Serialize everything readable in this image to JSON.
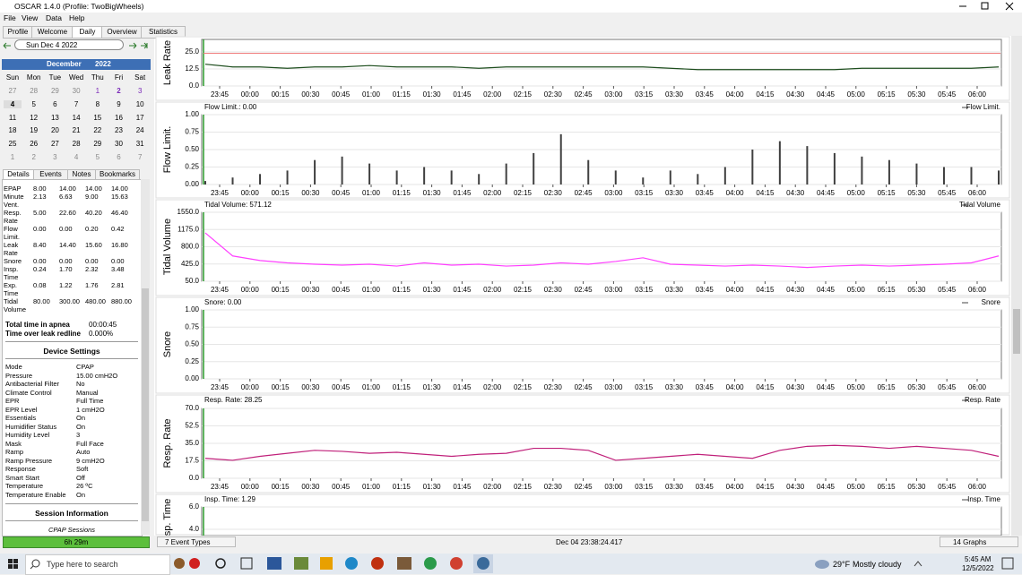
{
  "window": {
    "title": "OSCAR 1.4.0 (Profile: TwoBigWheels)"
  },
  "menu": [
    "File",
    "View",
    "Data",
    "Help"
  ],
  "tabs": [
    "Profile",
    "Welcome",
    "Daily",
    "Overview",
    "Statistics"
  ],
  "date_nav": {
    "date": "Sun Dec 4 2022"
  },
  "calendar": {
    "month": "December",
    "year": "2022",
    "weekdays": [
      "Sun",
      "Mon",
      "Tue",
      "Wed",
      "Thu",
      "Fri",
      "Sat"
    ],
    "weeks": [
      [
        27,
        28,
        29,
        30,
        1,
        2,
        3
      ],
      [
        4,
        5,
        6,
        7,
        8,
        9,
        10
      ],
      [
        11,
        12,
        13,
        14,
        15,
        16,
        17
      ],
      [
        18,
        19,
        20,
        21,
        22,
        23,
        24
      ],
      [
        25,
        26,
        27,
        28,
        29,
        30,
        31
      ],
      [
        1,
        2,
        3,
        4,
        5,
        6,
        7
      ]
    ]
  },
  "detail_tabs": [
    "Details",
    "Events",
    "Notes",
    "Bookmarks"
  ],
  "details": {
    "rows": [
      [
        "EPAP",
        "8.00",
        "14.00",
        "14.00",
        "14.00"
      ],
      [
        "Minute Vent.",
        "2.13",
        "6.63",
        "9.00",
        "15.63"
      ],
      [
        "Resp. Rate",
        "5.00",
        "22.60",
        "40.20",
        "46.40"
      ],
      [
        "Flow Limit.",
        "0.00",
        "0.00",
        "0.20",
        "0.42"
      ],
      [
        "Leak Rate",
        "8.40",
        "14.40",
        "15.60",
        "16.80"
      ],
      [
        "Snore",
        "0.00",
        "0.00",
        "0.00",
        "0.00"
      ],
      [
        "Insp. Time",
        "0.24",
        "1.70",
        "2.32",
        "3.48"
      ],
      [
        "Exp. Time",
        "0.08",
        "1.22",
        "1.76",
        "2.81"
      ],
      [
        "Tidal Volume",
        "80.00",
        "300.00",
        "480.00",
        "880.00"
      ]
    ]
  },
  "summary": [
    [
      "Total time in apnea",
      "00:00:45"
    ],
    [
      "Time over leak redline",
      "0.000%"
    ]
  ],
  "device_settings": {
    "title": "Device Settings",
    "rows": [
      [
        "Mode",
        "CPAP"
      ],
      [
        "Pressure",
        "15.00 cmH2O"
      ],
      [
        "Antibacterial Filter",
        "No"
      ],
      [
        "Climate Control",
        "Manual"
      ],
      [
        "EPR",
        "Full Time"
      ],
      [
        "EPR Level",
        "1 cmH2O"
      ],
      [
        "Essentials",
        "On"
      ],
      [
        "Humidifier Status",
        "On"
      ],
      [
        "Humidity Level",
        "3"
      ],
      [
        "Mask",
        "Full Face"
      ],
      [
        "Ramp",
        "Auto"
      ],
      [
        "Ramp Pressure",
        "9 cmH2O"
      ],
      [
        "Response",
        "Soft"
      ],
      [
        "Smart Start",
        "Off"
      ],
      [
        "Temperature",
        "26 ºC"
      ],
      [
        "Temperature Enable",
        "On"
      ]
    ]
  },
  "session_info": {
    "title": "Session Information",
    "subtitle": "CPAP Sessions"
  },
  "status": {
    "duration": "6h 29m",
    "event_types": "7 Event Types",
    "timestamp": "Dec 04 23:38:24.417",
    "graphs": "14 Graphs"
  },
  "time_axis": [
    "23:45",
    "00:00",
    "00:15",
    "00:30",
    "00:45",
    "01:00",
    "01:15",
    "01:30",
    "01:45",
    "02:00",
    "02:15",
    "02:30",
    "02:45",
    "03:00",
    "03:15",
    "03:30",
    "03:45",
    "04:00",
    "04:15",
    "04:30",
    "04:45",
    "05:00",
    "05:15",
    "05:30",
    "05:45",
    "06:00"
  ],
  "graphs": [
    {
      "type": "line",
      "ylabel": "Leak Rate",
      "ylim": [
        0,
        25
      ],
      "yticks": [
        {
          "value": 0,
          "label": "0.0"
        },
        {
          "value": 12.5,
          "label": "12.5"
        },
        {
          "value": 25,
          "label": "25.0"
        }
      ],
      "redline": 24,
      "series": [
        {
          "color": "#1d4d1d",
          "values": [
            16,
            14,
            14,
            13,
            14,
            14,
            15,
            14,
            14,
            14,
            13,
            14,
            14,
            14,
            14,
            14,
            14,
            13,
            12,
            12,
            12,
            12,
            12,
            12,
            13,
            13,
            13,
            13,
            13,
            14
          ]
        }
      ]
    },
    {
      "type": "bar",
      "ylabel": "Flow Limit.",
      "readout": "Flow Limit.: 0.00",
      "ylim": [
        0,
        1
      ],
      "yticks": [
        {
          "value": 0,
          "label": "0.00"
        },
        {
          "value": 0.25,
          "label": "0.25"
        },
        {
          "value": 0.5,
          "label": "0.50"
        },
        {
          "value": 0.75,
          "label": "0.75"
        },
        {
          "value": 1,
          "label": "1.00"
        }
      ],
      "series": [
        {
          "name": "Flow Limit.",
          "color": "#404040",
          "values": [
            0.05,
            0.1,
            0.15,
            0.2,
            0.35,
            0.4,
            0.3,
            0.2,
            0.25,
            0.2,
            0.15,
            0.3,
            0.45,
            0.72,
            0.35,
            0.2,
            0.1,
            0.2,
            0.15,
            0.25,
            0.5,
            0.62,
            0.55,
            0.45,
            0.4,
            0.35,
            0.3,
            0.25,
            0.25,
            0.2
          ]
        }
      ]
    },
    {
      "type": "line",
      "ylabel": "Tidal Volume",
      "readout": "Tidal Volume: 571.12",
      "ylim": [
        50,
        1550
      ],
      "yticks": [
        {
          "value": 50,
          "label": "50.0"
        },
        {
          "value": 425,
          "label": "425.0"
        },
        {
          "value": 800,
          "label": "800.0"
        },
        {
          "value": 1175,
          "label": "1175.0"
        },
        {
          "value": 1550,
          "label": "1550.0"
        }
      ],
      "series": [
        {
          "name": "Tidal Volume",
          "color": "#ff40ff",
          "values": [
            1100,
            600,
            500,
            450,
            420,
            400,
            420,
            380,
            450,
            400,
            420,
            380,
            400,
            450,
            420,
            480,
            560,
            420,
            400,
            380,
            400,
            380,
            350,
            380,
            400,
            380,
            400,
            420,
            450,
            600
          ]
        }
      ]
    },
    {
      "type": "line",
      "ylabel": "Snore",
      "readout": "Snore: 0.00",
      "ylim": [
        0,
        1
      ],
      "yticks": [
        {
          "value": 0,
          "label": "0.00"
        },
        {
          "value": 0.25,
          "label": "0.25"
        },
        {
          "value": 0.5,
          "label": "0.50"
        },
        {
          "value": 0.75,
          "label": "0.75"
        },
        {
          "value": 1,
          "label": "1.00"
        }
      ],
      "series": [
        {
          "name": "Snore",
          "color": "#606060"
        }
      ]
    },
    {
      "type": "line",
      "ylabel": "Resp. Rate",
      "readout": "Resp. Rate: 28.25",
      "ylim": [
        0,
        70
      ],
      "yticks": [
        {
          "value": 0,
          "label": "0.0"
        },
        {
          "value": 17.5,
          "label": "17.5"
        },
        {
          "value": 35,
          "label": "35.0"
        },
        {
          "value": 52.5,
          "label": "52.5"
        },
        {
          "value": 70,
          "label": "70.0"
        }
      ],
      "series": [
        {
          "name": "Resp. Rate",
          "color": "#c0207a",
          "values": [
            20,
            18,
            22,
            25,
            28,
            27,
            25,
            26,
            24,
            22,
            24,
            25,
            30,
            30,
            28,
            18,
            20,
            22,
            24,
            22,
            20,
            28,
            32,
            33,
            32,
            30,
            32,
            30,
            28,
            22
          ]
        }
      ]
    },
    {
      "type": "line",
      "ylabel": "Insp. Time",
      "readout": "Insp. Time: 1.29",
      "ylim": [
        4,
        6
      ],
      "yticks": [
        {
          "value": 4,
          "label": "4.0"
        },
        {
          "value": 6,
          "label": "6.0"
        }
      ],
      "series": [
        {
          "name": "Insp. Time",
          "color": "#4020a0"
        }
      ]
    }
  ],
  "taskbar": {
    "search": "Type here to search",
    "weather": "29°F",
    "conditions": "Mostly cloudy",
    "time": "5:45 AM",
    "date": "12/5/2022"
  }
}
